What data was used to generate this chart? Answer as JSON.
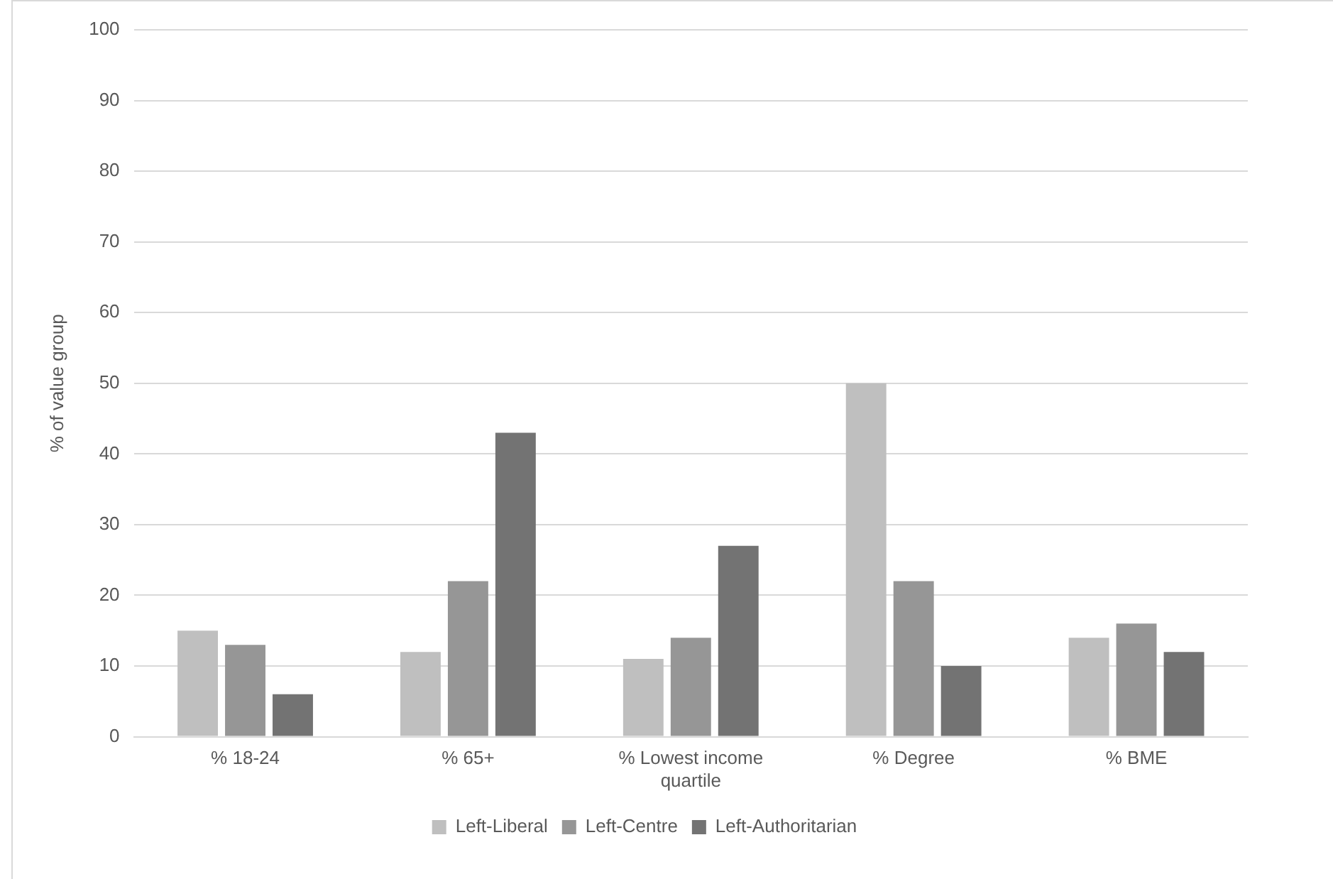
{
  "chart_data": {
    "type": "bar",
    "ylabel": "% of value group",
    "categories": [
      "% 18-24",
      "% 65+",
      "% Lowest income quartile",
      "% Degree",
      "% BME"
    ],
    "series": [
      {
        "name": "Left-Liberal",
        "color": "#bfbfbf",
        "values": [
          15,
          12,
          11,
          50,
          14
        ]
      },
      {
        "name": "Left-Centre",
        "color": "#969696",
        "values": [
          13,
          22,
          14,
          22,
          16
        ]
      },
      {
        "name": "Left-Authoritarian",
        "color": "#737373",
        "values": [
          6,
          43,
          27,
          10,
          12
        ]
      }
    ],
    "ylim": [
      0,
      100
    ],
    "yticks": [
      0,
      10,
      20,
      30,
      40,
      50,
      60,
      70,
      80,
      90,
      100
    ],
    "grid": "y",
    "legend": "bottom"
  }
}
